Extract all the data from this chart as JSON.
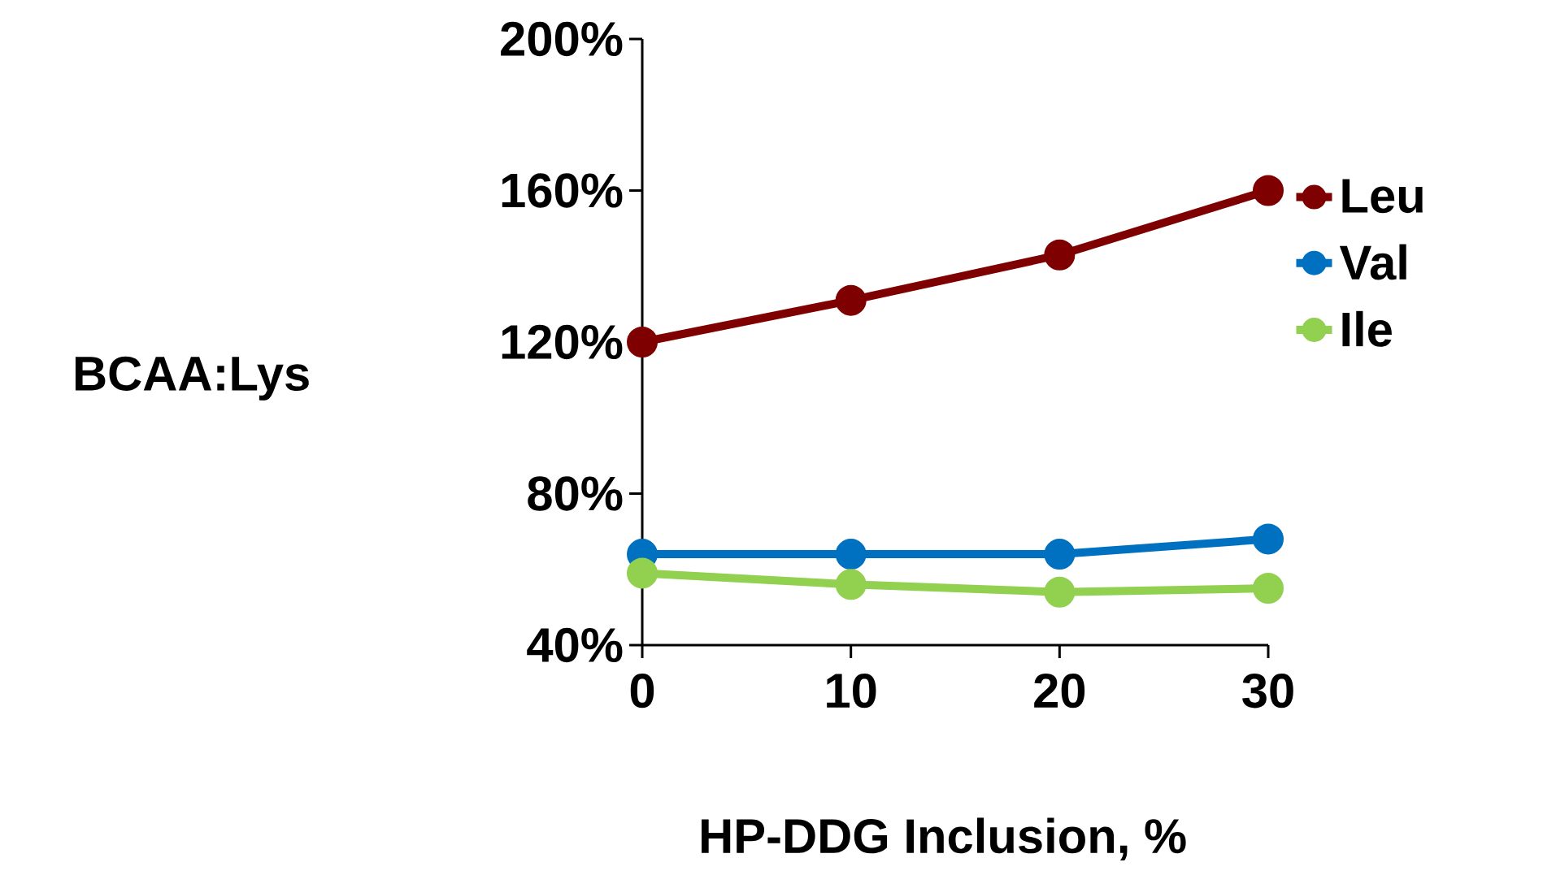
{
  "chart_data": {
    "type": "line",
    "xlabel": "HP-DDG Inclusion, %",
    "ylabel": "BCAA:Lys",
    "x": [
      0,
      10,
      20,
      30
    ],
    "series": [
      {
        "name": "Leu",
        "color": "#7f0000",
        "values": [
          120,
          131,
          143,
          160
        ]
      },
      {
        "name": "Val",
        "color": "#0070c0",
        "values": [
          64,
          64,
          64,
          68
        ]
      },
      {
        "name": "Ile",
        "color": "#92d050",
        "values": [
          59,
          56,
          54,
          55
        ]
      }
    ],
    "xlim": [
      0,
      30
    ],
    "xticks": [
      0,
      10,
      20,
      30
    ],
    "ylim": [
      40,
      200
    ],
    "yticks": [
      {
        "value": 40,
        "label": "40%"
      },
      {
        "value": 80,
        "label": "80%"
      },
      {
        "value": 120,
        "label": "120%"
      },
      {
        "value": 160,
        "label": "160%"
      },
      {
        "value": 200,
        "label": "200%"
      }
    ],
    "grid": false,
    "legend": "right",
    "marker": "circle",
    "line_style": "solid"
  }
}
